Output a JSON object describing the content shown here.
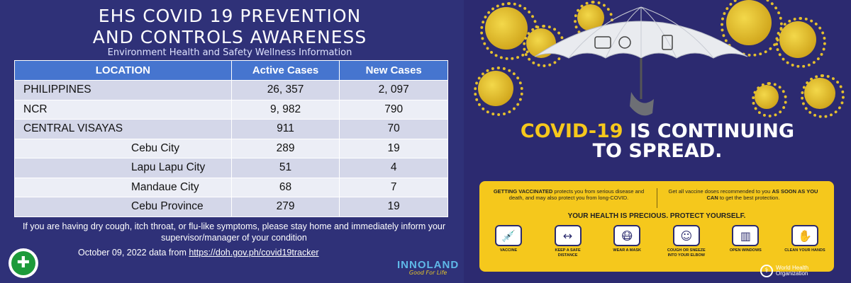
{
  "header": {
    "title_line1": "EHS COVID 19 PREVENTION",
    "title_line2": "AND CONTROLS AWARENESS",
    "subtitle": "Environment Health and Safety Wellness Information"
  },
  "table": {
    "columns": [
      "LOCATION",
      "Active Cases",
      "New Cases"
    ],
    "rows": [
      {
        "location": "PHILIPPINES",
        "active": "26, 357",
        "new": "2, 097",
        "level": "main"
      },
      {
        "location": "NCR",
        "active": "9, 982",
        "new": "790",
        "level": "main"
      },
      {
        "location": "CENTRAL VISAYAS",
        "active": "911",
        "new": "70",
        "level": "main"
      },
      {
        "location": "Cebu City",
        "active": "289",
        "new": "19",
        "level": "sub"
      },
      {
        "location": "Lapu Lapu City",
        "active": "51",
        "new": "4",
        "level": "sub"
      },
      {
        "location": "Mandaue City",
        "active": "68",
        "new": "7",
        "level": "sub"
      },
      {
        "location": "Cebu Province",
        "active": "279",
        "new": "19",
        "level": "sub"
      }
    ]
  },
  "note": "If you are having dry cough, itch throat, or flu-like symptoms, please stay home and immediately inform your supervisor/manager of your condition",
  "source": {
    "prefix": "October 09, 2022 data from ",
    "link_text": "https://doh.gov.ph/covid19tracker"
  },
  "brand": {
    "name": "INNOLAND",
    "tagline": "Good For Life"
  },
  "poster": {
    "headline_yellow": "COVID-19",
    "headline_white1": " IS CONTINUING",
    "headline_white2": "TO SPREAD.",
    "box_left_bold": "GETTING VACCINATED",
    "box_left_rest": " protects you from serious disease and death, and may also protect you from long-COVID.",
    "box_right_pre": "Get all vaccine doses recommended to you ",
    "box_right_bold": "AS SOON AS YOU CAN",
    "box_right_post": " to get the best protection.",
    "slogan": "YOUR HEALTH IS PRECIOUS. PROTECT YOURSELF.",
    "icons": [
      {
        "icon": "vaccine-icon",
        "glyph": "💉",
        "caption": "VACCINE"
      },
      {
        "icon": "distance-icon",
        "glyph": "↔",
        "caption": "KEEP A SAFE DISTANCE"
      },
      {
        "icon": "mask-icon",
        "glyph": "😷",
        "caption": "WEAR A MASK"
      },
      {
        "icon": "cough-icon",
        "glyph": "☺",
        "caption": "COUGH OR SNEEZE INTO YOUR ELBOW"
      },
      {
        "icon": "window-icon",
        "glyph": "▥",
        "caption": "OPEN WINDOWS"
      },
      {
        "icon": "hands-icon",
        "glyph": "✋",
        "caption": "CLEAN YOUR HANDS"
      }
    ],
    "who_line1": "World Health",
    "who_line2": "Organization"
  },
  "colors": {
    "background": "#2f3178",
    "table_header": "#4675cf",
    "accent_yellow": "#f5c81c"
  }
}
